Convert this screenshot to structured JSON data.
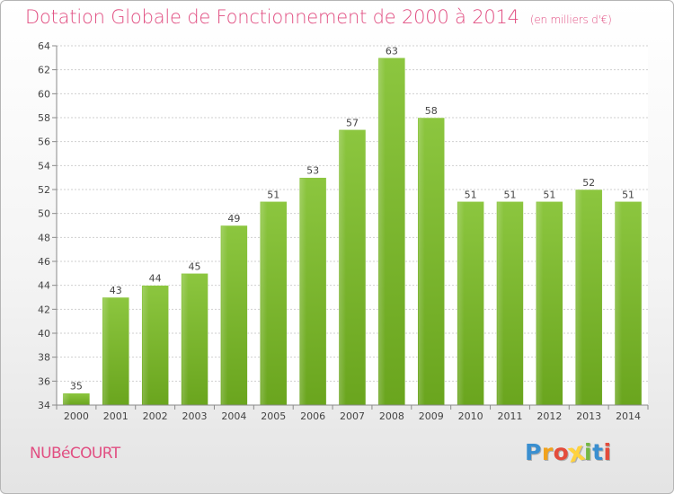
{
  "chart_data": {
    "type": "bar",
    "title": "Dotation Globale de Fonctionnement de 2000 à 2014",
    "subtitle": "(en milliers d'€)",
    "categories": [
      "2000",
      "2001",
      "2002",
      "2003",
      "2004",
      "2005",
      "2006",
      "2007",
      "2008",
      "2009",
      "2010",
      "2011",
      "2012",
      "2013",
      "2014"
    ],
    "values": [
      35,
      43,
      44,
      45,
      49,
      51,
      53,
      57,
      63,
      58,
      51,
      51,
      51,
      52,
      51
    ],
    "value_labels": [
      "35",
      "43",
      "44",
      "45",
      "49",
      "51",
      "53",
      "57",
      "63",
      "58",
      "51",
      "51",
      "51",
      "52",
      "51"
    ],
    "ylim": [
      34,
      64
    ],
    "yticks": [
      "34",
      "36",
      "38",
      "40",
      "42",
      "44",
      "46",
      "48",
      "50",
      "52",
      "54",
      "56",
      "58",
      "60",
      "62",
      "64"
    ],
    "grid": true,
    "xlabel": "",
    "ylabel": "",
    "bar_color": "#8cc63f",
    "bar_color_dark": "#6aa51e"
  },
  "footer": {
    "commune": "NUBéCOURT",
    "logo_text": "Proxiti",
    "logo_colors": [
      "#3a8fd0",
      "#f1a21c",
      "#e44c3c",
      "#ffd23f",
      "#74b843",
      "#3a8fd0",
      "#e44c3c"
    ]
  },
  "colors": {
    "accent": "#e14f82"
  }
}
